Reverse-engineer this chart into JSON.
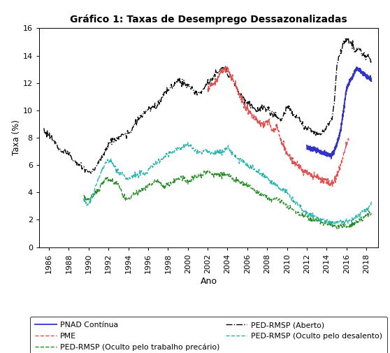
{
  "title": "Gráfico 1: Taxas de Desemprego Dessazonalizadas",
  "ylabel": "Taxa (%)",
  "xlabel": "Ano",
  "ylim": [
    0,
    16
  ],
  "yticks": [
    0,
    2,
    4,
    6,
    8,
    10,
    12,
    14,
    16
  ],
  "xticks": [
    1986,
    1988,
    1990,
    1992,
    1994,
    1996,
    1998,
    2000,
    2002,
    2004,
    2006,
    2008,
    2010,
    2012,
    2014,
    2016,
    2018
  ],
  "xlim": [
    1985.0,
    2019.2
  ],
  "series": {
    "PED_aberto": {
      "label": "PED-RMSP (Aberto)",
      "color": "#000000",
      "linestyle": "-.",
      "linewidth": 1.0
    },
    "PME": {
      "label": "PME",
      "color": "#e05050",
      "linestyle": "--",
      "linewidth": 1.0
    },
    "PNAD": {
      "label": "PNAD Contínua",
      "color": "#3333cc",
      "linestyle": "-",
      "linewidth": 1.3
    },
    "PED_oculto_trabalho": {
      "label": "PED-RMSP (Oculto pelo trabalho precário)",
      "color": "#228B22",
      "linestyle": "--",
      "linewidth": 1.0
    },
    "PED_oculto_desalento": {
      "label": "PED-RMSP (Oculto pelo desalento)",
      "color": "#20B2AA",
      "linestyle": "--",
      "linewidth": 1.0
    }
  },
  "background_color": "#ffffff",
  "figsize": [
    5.58,
    5.05
  ],
  "dpi": 100,
  "ped_aberto_x": [
    1985.5,
    1986.0,
    1986.5,
    1987.0,
    1987.5,
    1988.0,
    1988.5,
    1989.0,
    1989.5,
    1990.0,
    1990.5,
    1991.0,
    1991.5,
    1992.0,
    1992.5,
    1993.0,
    1993.5,
    1994.0,
    1994.5,
    1995.0,
    1995.5,
    1996.0,
    1996.5,
    1997.0,
    1997.5,
    1998.0,
    1998.5,
    1999.0,
    1999.5,
    2000.0,
    2000.5,
    2001.0,
    2001.5,
    2002.0,
    2002.5,
    2003.0,
    2003.5,
    2004.0,
    2004.5,
    2005.0,
    2005.5,
    2006.0,
    2006.5,
    2007.0,
    2007.5,
    2008.0,
    2008.5,
    2009.0,
    2009.5,
    2010.0,
    2010.5,
    2011.0,
    2011.5,
    2012.0,
    2012.5,
    2013.0,
    2013.5,
    2014.0,
    2014.25,
    2014.5,
    2014.75,
    2015.0,
    2015.25,
    2015.5,
    2015.75,
    2016.0,
    2016.25,
    2016.5,
    2016.75,
    2017.0,
    2017.25,
    2017.5,
    2017.75,
    2018.0,
    2018.25,
    2018.5
  ],
  "ped_aberto_y": [
    8.5,
    8.2,
    7.8,
    7.2,
    7.0,
    6.8,
    6.3,
    6.0,
    5.8,
    5.5,
    5.6,
    6.2,
    6.8,
    7.5,
    7.8,
    8.0,
    8.2,
    8.3,
    8.8,
    9.3,
    9.7,
    10.0,
    10.2,
    10.5,
    11.0,
    11.5,
    11.8,
    12.2,
    12.0,
    11.8,
    11.5,
    11.2,
    11.5,
    12.0,
    12.3,
    12.8,
    13.0,
    12.8,
    12.3,
    11.5,
    11.0,
    10.5,
    10.3,
    10.0,
    10.2,
    10.1,
    9.8,
    9.5,
    9.3,
    10.2,
    9.8,
    9.5,
    9.0,
    8.7,
    8.5,
    8.4,
    8.3,
    8.8,
    9.0,
    9.3,
    10.5,
    13.0,
    14.0,
    14.5,
    15.0,
    15.2,
    15.0,
    14.8,
    14.5,
    14.3,
    14.5,
    14.2,
    14.0,
    14.0,
    13.8,
    13.5
  ],
  "pme_x": [
    2002.0,
    2002.3,
    2002.6,
    2003.0,
    2003.3,
    2003.6,
    2004.0,
    2004.3,
    2004.6,
    2005.0,
    2005.3,
    2005.6,
    2006.0,
    2006.3,
    2006.6,
    2007.0,
    2007.3,
    2007.6,
    2008.0,
    2008.3,
    2008.6,
    2009.0,
    2009.3,
    2009.6,
    2010.0,
    2010.3,
    2010.6,
    2011.0,
    2011.3,
    2011.6,
    2012.0,
    2012.3,
    2012.6,
    2013.0,
    2013.3,
    2013.6,
    2014.0,
    2014.3,
    2014.6,
    2015.0,
    2015.3,
    2015.6,
    2016.0,
    2016.3
  ],
  "pme_y": [
    11.5,
    11.8,
    12.0,
    12.3,
    12.8,
    13.0,
    13.0,
    12.5,
    12.2,
    11.5,
    11.0,
    10.5,
    10.0,
    9.8,
    9.5,
    9.3,
    9.0,
    9.0,
    9.2,
    9.0,
    8.5,
    8.8,
    8.0,
    7.5,
    6.8,
    6.5,
    6.2,
    6.0,
    5.8,
    5.5,
    5.5,
    5.3,
    5.2,
    5.2,
    5.0,
    4.9,
    4.8,
    4.7,
    4.7,
    5.2,
    5.8,
    6.5,
    7.5,
    8.0
  ],
  "pnad_x": [
    2012.0,
    2012.5,
    2013.0,
    2013.5,
    2014.0,
    2014.5,
    2015.0,
    2015.5,
    2016.0,
    2016.5,
    2017.0,
    2017.5,
    2018.0,
    2018.5
  ],
  "pnad_y": [
    7.3,
    7.2,
    7.1,
    6.9,
    6.8,
    6.7,
    7.5,
    9.0,
    11.5,
    12.3,
    13.0,
    12.8,
    12.5,
    12.2
  ],
  "ped_trab_x": [
    1989.5,
    1990.0,
    1990.5,
    1991.0,
    1991.5,
    1992.0,
    1992.5,
    1993.0,
    1993.5,
    1994.0,
    1994.5,
    1995.0,
    1995.5,
    1996.0,
    1996.5,
    1997.0,
    1997.5,
    1998.0,
    1998.5,
    1999.0,
    1999.5,
    2000.0,
    2000.5,
    2001.0,
    2001.5,
    2002.0,
    2002.5,
    2003.0,
    2003.5,
    2004.0,
    2004.5,
    2005.0,
    2005.5,
    2006.0,
    2006.5,
    2007.0,
    2007.5,
    2008.0,
    2008.5,
    2009.0,
    2009.5,
    2010.0,
    2010.5,
    2011.0,
    2011.5,
    2012.0,
    2012.5,
    2013.0,
    2013.5,
    2014.0,
    2014.5,
    2015.0,
    2015.5,
    2016.0,
    2016.5,
    2017.0,
    2017.5,
    2018.0,
    2018.5
  ],
  "ped_trab_y": [
    3.8,
    3.5,
    3.8,
    4.2,
    4.8,
    5.0,
    4.7,
    4.5,
    3.8,
    3.5,
    3.8,
    4.0,
    4.2,
    4.5,
    4.7,
    4.8,
    4.5,
    4.5,
    4.8,
    5.0,
    5.0,
    4.8,
    5.0,
    5.2,
    5.3,
    5.5,
    5.3,
    5.3,
    5.2,
    5.2,
    5.0,
    4.8,
    4.7,
    4.5,
    4.3,
    4.0,
    3.8,
    3.7,
    3.5,
    3.5,
    3.3,
    3.0,
    2.8,
    2.5,
    2.3,
    2.2,
    2.0,
    2.0,
    1.8,
    1.7,
    1.6,
    1.5,
    1.5,
    1.5,
    1.6,
    1.8,
    2.0,
    2.3,
    2.5
  ],
  "ped_des_x": [
    1989.5,
    1990.0,
    1990.5,
    1991.0,
    1991.5,
    1992.0,
    1992.5,
    1993.0,
    1993.5,
    1994.0,
    1994.5,
    1995.0,
    1995.5,
    1996.0,
    1996.5,
    1997.0,
    1997.5,
    1998.0,
    1998.5,
    1999.0,
    1999.5,
    2000.0,
    2000.5,
    2001.0,
    2001.5,
    2002.0,
    2002.5,
    2003.0,
    2003.5,
    2004.0,
    2004.5,
    2005.0,
    2005.5,
    2006.0,
    2006.5,
    2007.0,
    2007.5,
    2008.0,
    2008.5,
    2009.0,
    2009.5,
    2010.0,
    2010.5,
    2011.0,
    2011.5,
    2012.0,
    2012.5,
    2013.0,
    2013.5,
    2014.0,
    2014.5,
    2015.0,
    2015.5,
    2016.0,
    2016.5,
    2017.0,
    2017.5,
    2018.0,
    2018.5
  ],
  "ped_des_y": [
    3.5,
    3.2,
    4.0,
    5.0,
    5.8,
    6.3,
    6.0,
    5.5,
    5.2,
    5.0,
    5.2,
    5.3,
    5.5,
    5.5,
    6.0,
    6.2,
    6.5,
    6.8,
    7.0,
    7.2,
    7.3,
    7.5,
    7.2,
    7.0,
    7.0,
    7.0,
    6.8,
    7.0,
    7.0,
    7.2,
    6.8,
    6.5,
    6.3,
    6.0,
    5.8,
    5.5,
    5.3,
    5.0,
    4.7,
    4.5,
    4.2,
    4.0,
    3.5,
    3.2,
    2.8,
    2.5,
    2.3,
    2.2,
    2.0,
    1.9,
    1.8,
    1.8,
    1.8,
    1.9,
    2.0,
    2.2,
    2.5,
    2.8,
    3.2
  ]
}
